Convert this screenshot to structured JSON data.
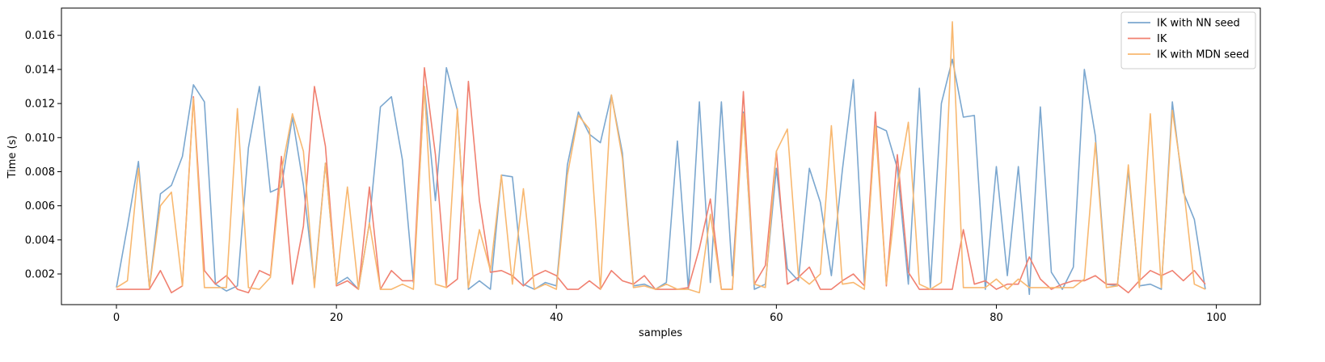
{
  "chart_data": {
    "type": "line",
    "title": "",
    "xlabel": "samples",
    "ylabel": "Time (s)",
    "xlim": [
      -5,
      104
    ],
    "ylim": [
      0.0002,
      0.0176
    ],
    "xticks": [
      0,
      20,
      40,
      60,
      80,
      100
    ],
    "xtick_labels": [
      "0",
      "20",
      "40",
      "60",
      "80",
      "100"
    ],
    "yticks": [
      0.002,
      0.004,
      0.006,
      0.008,
      0.01,
      0.012,
      0.014,
      0.016
    ],
    "ytick_labels": [
      "0.002",
      "0.004",
      "0.006",
      "0.008",
      "0.010",
      "0.012",
      "0.014",
      "0.016"
    ],
    "grid": false,
    "legend_position": "top-right",
    "x": [
      0,
      1,
      2,
      3,
      4,
      5,
      6,
      7,
      8,
      9,
      10,
      11,
      12,
      13,
      14,
      15,
      16,
      17,
      18,
      19,
      20,
      21,
      22,
      23,
      24,
      25,
      26,
      27,
      28,
      29,
      30,
      31,
      32,
      33,
      34,
      35,
      36,
      37,
      38,
      39,
      40,
      41,
      42,
      43,
      44,
      45,
      46,
      47,
      48,
      49,
      50,
      51,
      52,
      53,
      54,
      55,
      56,
      57,
      58,
      59,
      60,
      61,
      62,
      63,
      64,
      65,
      66,
      67,
      68,
      69,
      70,
      71,
      72,
      73,
      74,
      75,
      76,
      77,
      78,
      79,
      80,
      81,
      82,
      83,
      84,
      85,
      86,
      87,
      88,
      89,
      90,
      91,
      92,
      93,
      94,
      95,
      96,
      97,
      98,
      99
    ],
    "series": [
      {
        "name": "IK with NN seed",
        "color": "#7ba7cf",
        "values": [
          0.0012,
          0.0048,
          0.0086,
          0.0012,
          0.0067,
          0.0072,
          0.0089,
          0.0131,
          0.0121,
          0.0014,
          0.001,
          0.0013,
          0.0094,
          0.013,
          0.0068,
          0.0071,
          0.0112,
          0.0072,
          0.0014,
          0.0085,
          0.0014,
          0.0018,
          0.0011,
          0.005,
          0.0118,
          0.0124,
          0.0087,
          0.0015,
          0.013,
          0.0063,
          0.0141,
          0.0116,
          0.0011,
          0.0016,
          0.0011,
          0.0078,
          0.0077,
          0.0014,
          0.0011,
          0.0015,
          0.0013,
          0.0084,
          0.0115,
          0.0102,
          0.0097,
          0.0125,
          0.0091,
          0.0013,
          0.0014,
          0.0011,
          0.0015,
          0.0098,
          0.0011,
          0.0121,
          0.0015,
          0.0121,
          0.0019,
          0.0115,
          0.0011,
          0.0014,
          0.0082,
          0.0023,
          0.0016,
          0.0082,
          0.0062,
          0.0019,
          0.0081,
          0.0134,
          0.0015,
          0.0107,
          0.0104,
          0.0082,
          0.0014,
          0.0129,
          0.0012,
          0.012,
          0.0146,
          0.0112,
          0.0113,
          0.0011,
          0.0083,
          0.0019,
          0.0083,
          0.0008,
          0.0118,
          0.0021,
          0.0011,
          0.0024,
          0.014,
          0.0101,
          0.0014,
          0.0013,
          0.0081,
          0.0013,
          0.0014,
          0.0011,
          0.0121,
          0.0068,
          0.0052,
          0.0011
        ]
      },
      {
        "name": "IK",
        "color": "#f08070",
        "values": [
          0.0011,
          0.0011,
          0.0011,
          0.0011,
          0.0022,
          0.0009,
          0.0013,
          0.0124,
          0.0022,
          0.0014,
          0.0019,
          0.0011,
          0.0009,
          0.0022,
          0.0019,
          0.0089,
          0.0014,
          0.0048,
          0.013,
          0.0095,
          0.0013,
          0.0016,
          0.0011,
          0.0071,
          0.0011,
          0.0022,
          0.0016,
          0.0016,
          0.0141,
          0.009,
          0.0012,
          0.0017,
          0.0133,
          0.0063,
          0.0021,
          0.0022,
          0.0019,
          0.0013,
          0.0019,
          0.0022,
          0.0019,
          0.0011,
          0.0011,
          0.0016,
          0.0011,
          0.0022,
          0.0016,
          0.0014,
          0.0019,
          0.0011,
          0.0011,
          0.0011,
          0.0012,
          0.0035,
          0.0064,
          0.0011,
          0.0011,
          0.0127,
          0.0014,
          0.0025,
          0.0092,
          0.0014,
          0.0018,
          0.0024,
          0.0011,
          0.0011,
          0.0016,
          0.002,
          0.0013,
          0.0115,
          0.0013,
          0.009,
          0.0021,
          0.0011,
          0.0011,
          0.0011,
          0.0011,
          0.0046,
          0.0014,
          0.0016,
          0.0011,
          0.0014,
          0.0014,
          0.003,
          0.0017,
          0.0011,
          0.0014,
          0.0016,
          0.0016,
          0.0019,
          0.0014,
          0.0014,
          0.0009,
          0.0016,
          0.0022,
          0.0019,
          0.0022,
          0.0016,
          0.0022,
          0.0014
        ]
      },
      {
        "name": "IK with MDN seed",
        "color": "#f8b870",
        "values": [
          0.0012,
          0.0016,
          0.0082,
          0.0012,
          0.006,
          0.0068,
          0.0013,
          0.0123,
          0.0012,
          0.0012,
          0.0012,
          0.0117,
          0.0012,
          0.0011,
          0.0018,
          0.008,
          0.0114,
          0.0092,
          0.0012,
          0.0085,
          0.0014,
          0.0071,
          0.0011,
          0.005,
          0.0011,
          0.0011,
          0.0014,
          0.0011,
          0.013,
          0.0014,
          0.0012,
          0.0117,
          0.0012,
          0.0046,
          0.0022,
          0.0078,
          0.0014,
          0.007,
          0.0011,
          0.0014,
          0.0011,
          0.0078,
          0.0113,
          0.0105,
          0.0011,
          0.0125,
          0.0088,
          0.0012,
          0.0013,
          0.0011,
          0.0014,
          0.0011,
          0.0011,
          0.0009,
          0.0055,
          0.0011,
          0.0011,
          0.0114,
          0.0014,
          0.0012,
          0.0092,
          0.0105,
          0.0019,
          0.0014,
          0.002,
          0.0107,
          0.0014,
          0.0015,
          0.0011,
          0.0107,
          0.0014,
          0.0071,
          0.0109,
          0.0014,
          0.0011,
          0.0015,
          0.0168,
          0.0012,
          0.0012,
          0.0012,
          0.0017,
          0.0011,
          0.0017,
          0.0012,
          0.0012,
          0.0012,
          0.0012,
          0.0012,
          0.0017,
          0.0097,
          0.0012,
          0.0013,
          0.0084,
          0.0012,
          0.0114,
          0.0012,
          0.0116,
          0.0072,
          0.0014,
          0.0011
        ]
      }
    ]
  }
}
